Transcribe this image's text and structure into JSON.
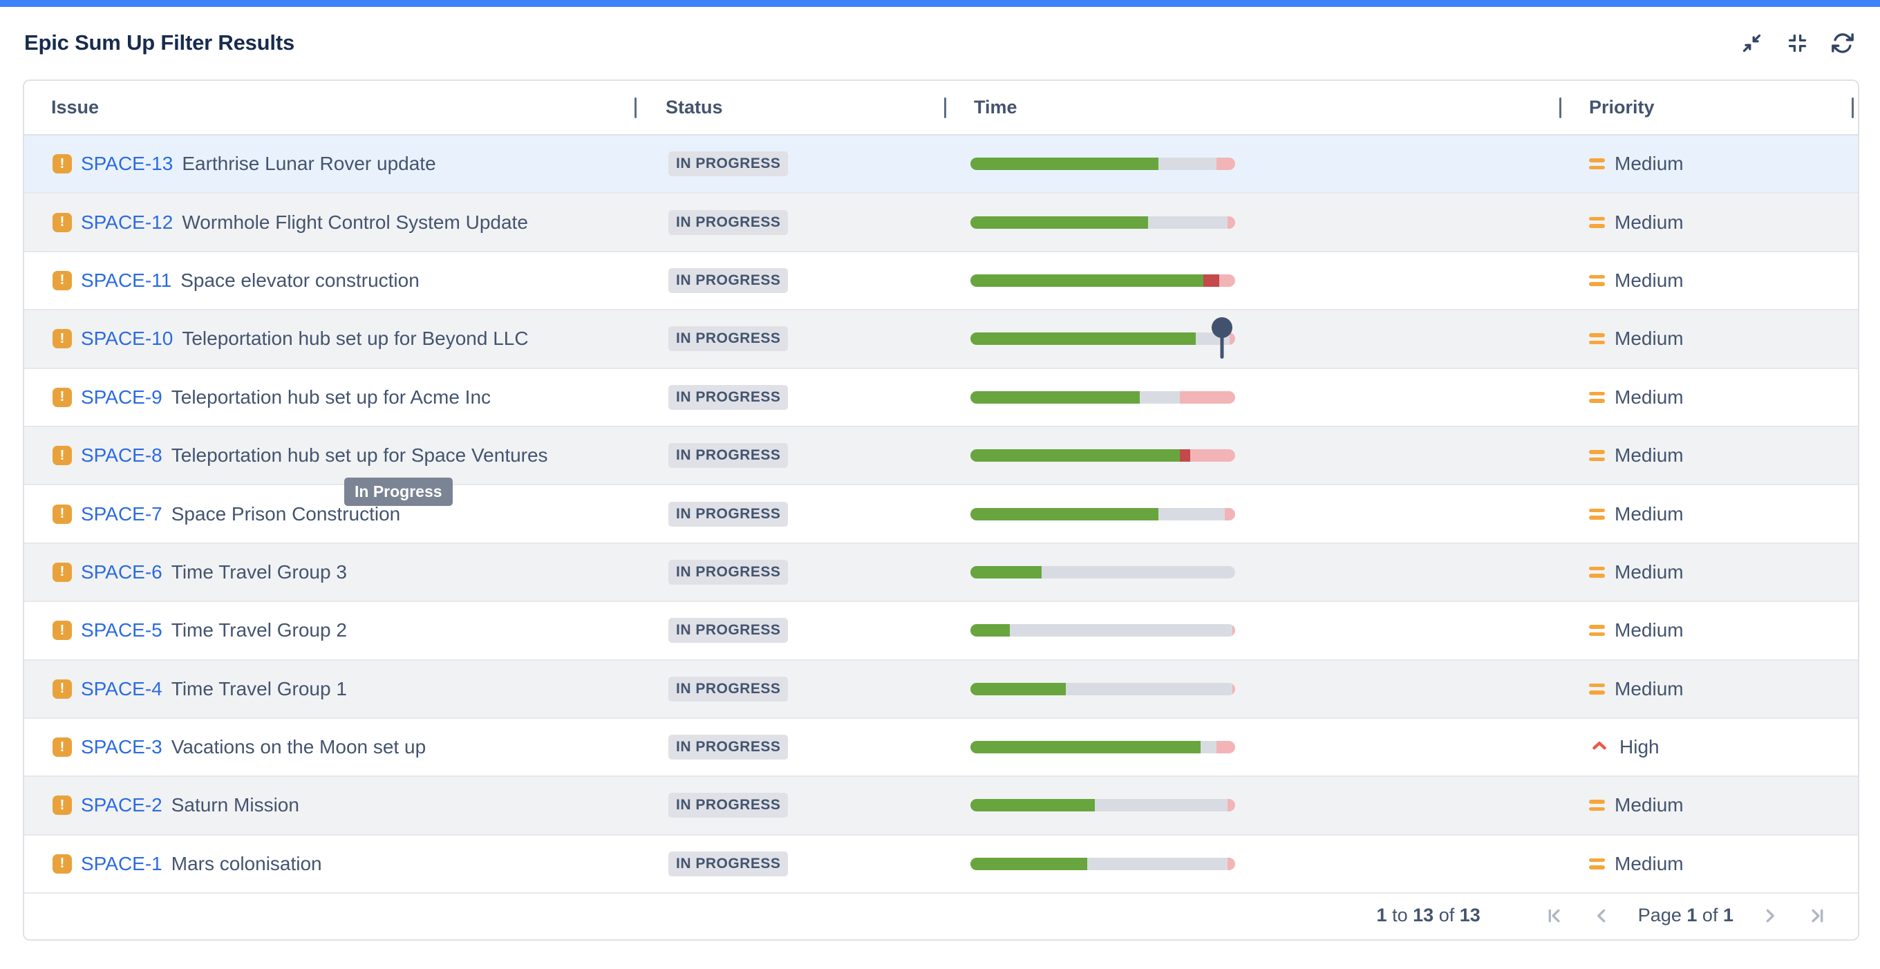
{
  "page": {
    "title": "Epic Sum Up Filter Results"
  },
  "colors": {
    "top_bar": "#3E82F7",
    "link_blue": "#2B6BE2",
    "epic_icon_orange": "#E9A23B",
    "segment_green": "#68A53E",
    "segment_red": "#C4494A",
    "segment_gray": "#D8DCE2",
    "segment_pink": "#F2B4B6",
    "priority_medium_orange": "#F5A63B",
    "priority_high_red": "#EB5A46",
    "badge_background": "#DFE1E6",
    "highlighted_row": "#E9F2FC"
  },
  "table": {
    "columns": [
      {
        "label": "Issue"
      },
      {
        "label": "Status"
      },
      {
        "label": "Time"
      },
      {
        "label": "Priority"
      }
    ],
    "rows": [
      {
        "key": "SPACE-13",
        "summary": "Earthrise Lunar Rover update",
        "status": "IN PROGRESS",
        "priority": "Medium",
        "highlighted": true,
        "segments": [
          {
            "color": "green",
            "pct": 71
          },
          {
            "color": "gray",
            "pct": 22
          },
          {
            "color": "pink",
            "pct": 7
          }
        ]
      },
      {
        "key": "SPACE-12",
        "summary": "Wormhole Flight Control System Update",
        "status": "IN PROGRESS",
        "priority": "Medium",
        "segments": [
          {
            "color": "green",
            "pct": 67
          },
          {
            "color": "gray",
            "pct": 30
          },
          {
            "color": "pink",
            "pct": 3
          }
        ]
      },
      {
        "key": "SPACE-11",
        "summary": "Space elevator construction",
        "status": "IN PROGRESS",
        "priority": "Medium",
        "segments": [
          {
            "color": "green",
            "pct": 88
          },
          {
            "color": "red",
            "pct": 6
          },
          {
            "color": "pink",
            "pct": 6
          }
        ]
      },
      {
        "key": "SPACE-10",
        "summary": "Teleportation hub set up for Beyond LLC",
        "status": "IN PROGRESS",
        "priority": "Medium",
        "pin_pct": 95,
        "segments": [
          {
            "color": "green",
            "pct": 85
          },
          {
            "color": "gray",
            "pct": 13
          },
          {
            "color": "pink",
            "pct": 2
          }
        ]
      },
      {
        "key": "SPACE-9",
        "summary": "Teleportation hub set up for Acme Inc",
        "status": "IN PROGRESS",
        "priority": "Medium",
        "segments": [
          {
            "color": "green",
            "pct": 64
          },
          {
            "color": "gray",
            "pct": 15
          },
          {
            "color": "pink",
            "pct": 21
          }
        ]
      },
      {
        "key": "SPACE-8",
        "summary": "Teleportation hub set up for Space Ventures",
        "status": "IN PROGRESS",
        "priority": "Medium",
        "segments": [
          {
            "color": "green",
            "pct": 79
          },
          {
            "color": "red",
            "pct": 4
          },
          {
            "color": "pink",
            "pct": 17
          }
        ]
      },
      {
        "key": "SPACE-7",
        "summary": "Space Prison Construction",
        "status": "IN PROGRESS",
        "priority": "Medium",
        "segments": [
          {
            "color": "green",
            "pct": 71
          },
          {
            "color": "gray",
            "pct": 25
          },
          {
            "color": "pink",
            "pct": 4
          }
        ]
      },
      {
        "key": "SPACE-6",
        "summary": "Time Travel Group 3",
        "status": "IN PROGRESS",
        "priority": "Medium",
        "segments": [
          {
            "color": "green",
            "pct": 27
          },
          {
            "color": "gray",
            "pct": 73
          }
        ]
      },
      {
        "key": "SPACE-5",
        "summary": "Time Travel Group 2",
        "status": "IN PROGRESS",
        "priority": "Medium",
        "segments": [
          {
            "color": "green",
            "pct": 15
          },
          {
            "color": "gray",
            "pct": 84
          },
          {
            "color": "pink",
            "pct": 1
          }
        ]
      },
      {
        "key": "SPACE-4",
        "summary": "Time Travel Group 1",
        "status": "IN PROGRESS",
        "priority": "Medium",
        "segments": [
          {
            "color": "green",
            "pct": 36
          },
          {
            "color": "gray",
            "pct": 63
          },
          {
            "color": "pink",
            "pct": 1
          }
        ]
      },
      {
        "key": "SPACE-3",
        "summary": "Vacations on the Moon set up",
        "status": "IN PROGRESS",
        "priority": "High",
        "segments": [
          {
            "color": "green",
            "pct": 87
          },
          {
            "color": "gray",
            "pct": 6
          },
          {
            "color": "pink",
            "pct": 7
          }
        ]
      },
      {
        "key": "SPACE-2",
        "summary": "Saturn Mission",
        "status": "IN PROGRESS",
        "priority": "Medium",
        "segments": [
          {
            "color": "green",
            "pct": 47
          },
          {
            "color": "gray",
            "pct": 50
          },
          {
            "color": "pink",
            "pct": 3
          }
        ]
      },
      {
        "key": "SPACE-1",
        "summary": "Mars colonisation",
        "status": "IN PROGRESS",
        "priority": "Medium",
        "segments": [
          {
            "color": "green",
            "pct": 44
          },
          {
            "color": "gray",
            "pct": 53
          },
          {
            "color": "pink",
            "pct": 3
          }
        ]
      }
    ]
  },
  "tooltip": {
    "text": "In Progress"
  },
  "footer": {
    "range": {
      "from": "1",
      "to_word": "to",
      "to": "13",
      "of_word": "of",
      "total": "13"
    },
    "page": {
      "page_word": "Page",
      "current": "1",
      "of_word": "of",
      "total": "1"
    }
  }
}
